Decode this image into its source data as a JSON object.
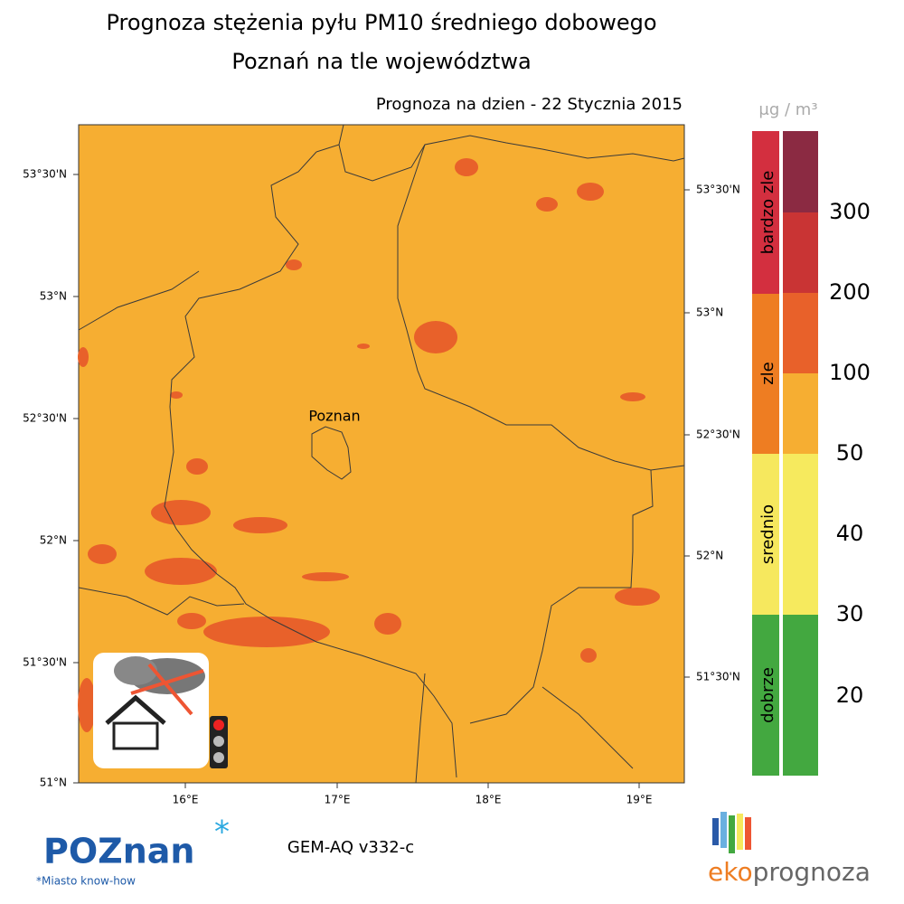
{
  "header": {
    "title": "Prognoza stężenia pyłu PM10 średniego dobowego",
    "subtitle": "Poznań na tle województwa",
    "date": "Prognoza na dzien -  22 Stycznia 2015"
  },
  "map": {
    "city_label": "Poznan",
    "lat_labels_left": [
      "53°30'N",
      "53°N",
      "52°30'N",
      "52°N",
      "51°30'N",
      "51°N"
    ],
    "lat_labels_right": [
      "53°30'N",
      "53°N",
      "52°30'N",
      "52°N",
      "51°30'N"
    ],
    "lon_labels": [
      "16°E",
      "17°E",
      "18°E",
      "19°E"
    ]
  },
  "legend": {
    "unit": "μg / m³",
    "categories": [
      "bardzo zle",
      "zle",
      "srednio",
      "dobrze"
    ],
    "levels": [
      300,
      200,
      100,
      50,
      40,
      30,
      20
    ]
  },
  "footer": {
    "model": "GEM-AQ v332-c",
    "city_logo": "POZnan",
    "city_slogan": "*Miasto know-how",
    "provider_logo": [
      "eko",
      "prognoza"
    ]
  }
}
